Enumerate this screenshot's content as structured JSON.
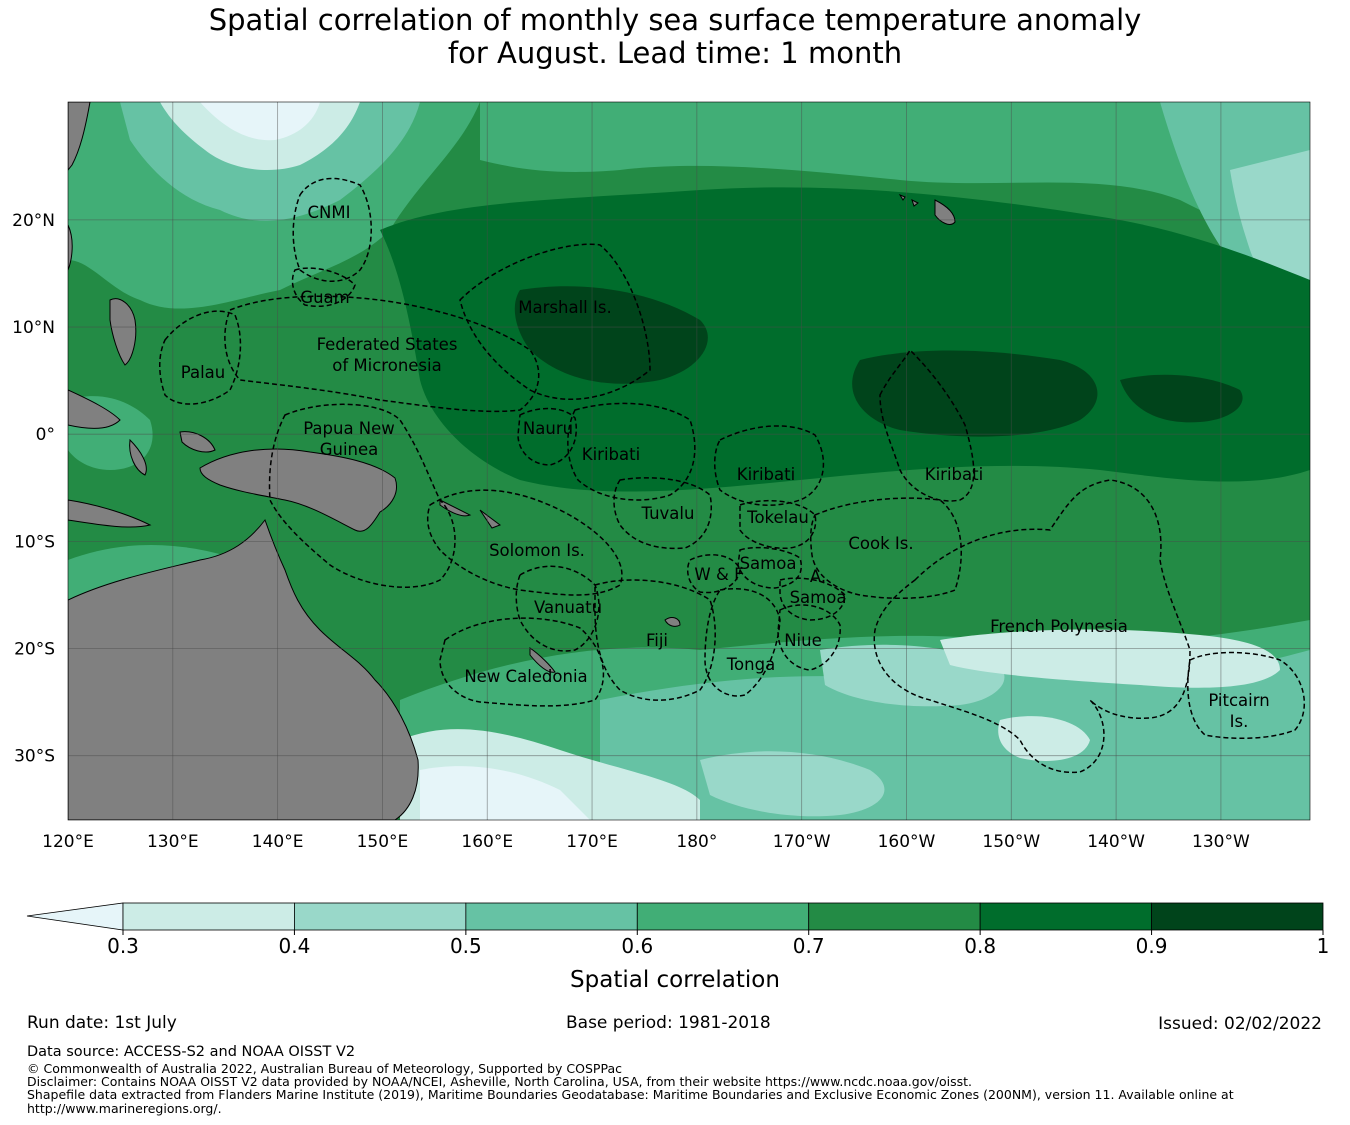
{
  "title": {
    "line1": "Spatial correlation of monthly sea surface temperature anomaly",
    "line2": "for August. Lead time: 1 month"
  },
  "map": {
    "lon_labels": [
      "120°E",
      "130°E",
      "140°E",
      "150°E",
      "160°E",
      "170°E",
      "180°",
      "170°W",
      "160°W",
      "150°W",
      "140°W",
      "130°W"
    ],
    "lat_labels": [
      "20°N",
      "10°N",
      "0°",
      "10°S",
      "20°S",
      "30°S"
    ],
    "extent": {
      "lon": [
        120,
        238.5
      ],
      "lat": [
        -36,
        31
      ]
    },
    "land_color": "#808080",
    "regions": [
      {
        "name": "cnmi",
        "lines": [
          "CNMI"
        ]
      },
      {
        "name": "guam",
        "lines": [
          "Guam"
        ]
      },
      {
        "name": "marshall",
        "lines": [
          "Marshall Is."
        ]
      },
      {
        "name": "fsm",
        "lines": [
          "Federated States",
          "of Micronesia"
        ]
      },
      {
        "name": "palau",
        "lines": [
          "Palau"
        ]
      },
      {
        "name": "png",
        "lines": [
          "Papua New",
          "Guinea"
        ]
      },
      {
        "name": "nauru",
        "lines": [
          "Nauru"
        ]
      },
      {
        "name": "kiribati-gilbert",
        "lines": [
          "Kiribati"
        ]
      },
      {
        "name": "kiribati-phoenix",
        "lines": [
          "Kiribati"
        ]
      },
      {
        "name": "kiribati-line",
        "lines": [
          "Kiribati"
        ]
      },
      {
        "name": "tuvalu",
        "lines": [
          "Tuvalu"
        ]
      },
      {
        "name": "tokelau",
        "lines": [
          "Tokelau"
        ]
      },
      {
        "name": "cook",
        "lines": [
          "Cook Is."
        ]
      },
      {
        "name": "solomon",
        "lines": [
          "Solomon Is."
        ]
      },
      {
        "name": "samoa",
        "lines": [
          "Samoa"
        ]
      },
      {
        "name": "wallis",
        "lines": [
          "W & F"
        ]
      },
      {
        "name": "am-samoa-a",
        "lines": [
          "A."
        ]
      },
      {
        "name": "am-samoa",
        "lines": [
          "Samoa"
        ]
      },
      {
        "name": "vanuatu",
        "lines": [
          "Vanuatu"
        ]
      },
      {
        "name": "fiji",
        "lines": [
          "Fiji"
        ]
      },
      {
        "name": "niue",
        "lines": [
          "Niue"
        ]
      },
      {
        "name": "tonga",
        "lines": [
          "Tonga"
        ]
      },
      {
        "name": "french-polynesia",
        "lines": [
          "French Polynesia"
        ]
      },
      {
        "name": "new-caledonia",
        "lines": [
          "New Caledonia"
        ]
      },
      {
        "name": "pitcairn",
        "lines": [
          "Pitcairn",
          "Is."
        ]
      }
    ]
  },
  "colorbar": {
    "label": "Spatial correlation",
    "ticks": [
      "0.3",
      "0.4",
      "0.5",
      "0.6",
      "0.7",
      "0.8",
      "0.9",
      "1"
    ],
    "under_color": "#e6f5f9",
    "colors": [
      "#ccece6",
      "#99d8c9",
      "#66c2a4",
      "#41ae76",
      "#238b45",
      "#006d2c",
      "#00441b"
    ]
  },
  "footer": {
    "run_date": "Run date: 1st July",
    "base_period": "Base period: 1981-2018",
    "issued": "Issued: 02/02/2022",
    "data_source": "Data source: ACCESS-S2 and NOAA OISST V2",
    "copyright": "© Commonwealth of Australia 2022, Australian Bureau of Meteorology, Supported by COSPPac",
    "disclaimer": "Disclaimer: Contains NOAA OISST V2 data provided by NOAA/NCEI, Asheville, North Carolina, USA, from their website https://www.ncdc.noaa.gov/oisst.",
    "shapefile_1": "Shapefile data extracted from Flanders Marine Institute (2019), Maritime Boundaries Geodatabase: Maritime Boundaries and Exclusive Economic Zones (200NM), version 11. Available online at",
    "shapefile_2": "http://www.marineregions.org/."
  }
}
